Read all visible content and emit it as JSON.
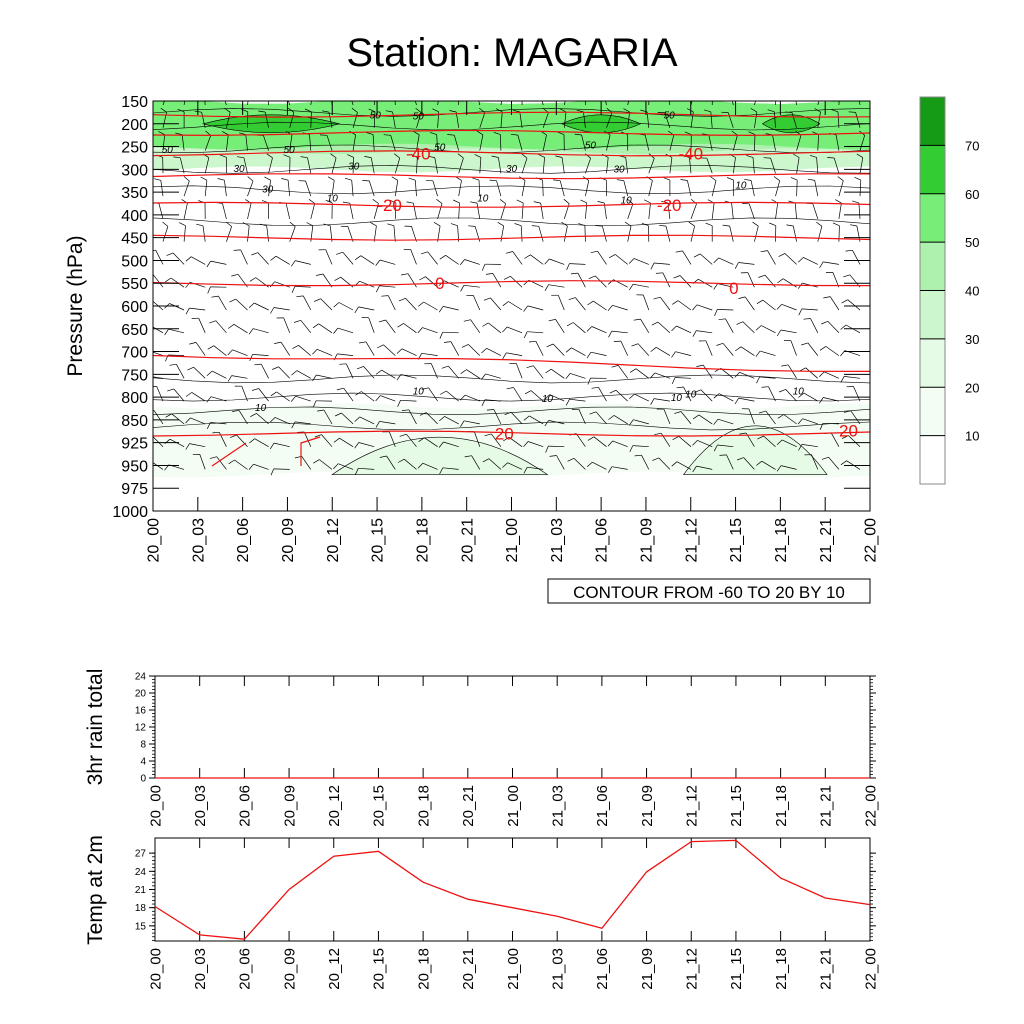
{
  "title": "Station: MAGARIA",
  "time_labels": [
    "20_00",
    "20_03",
    "20_06",
    "20_09",
    "20_12",
    "20_15",
    "20_18",
    "20_21",
    "21_00",
    "21_03",
    "21_06",
    "21_09",
    "21_12",
    "21_15",
    "21_18",
    "21_21",
    "22_00"
  ],
  "colors": {
    "temp_line": "#ee1111",
    "wind_line": "#000000",
    "shade_10_20": "#f3fdf3",
    "shade_20_30": "#e6fbe6",
    "shade_30_40": "#ccf7cc",
    "shade_40_50": "#aef0ae",
    "shade_50_60": "#77ee77",
    "shade_60_70": "#33cc33",
    "shade_70_80": "#159b15"
  },
  "chart_data": [
    {
      "type": "heatmap",
      "title": "Station: MAGARIA",
      "ylabel": "Pressure (hPa)",
      "xlabel": "",
      "info_label": "CONTOUR FROM -60 TO 20 BY 10",
      "pressure_levels": [
        "150",
        "200",
        "250",
        "300",
        "350",
        "400",
        "450",
        "500",
        "550",
        "600",
        "650",
        "700",
        "750",
        "800",
        "850",
        "925",
        "950",
        "975",
        "1000"
      ],
      "colorbar": {
        "labels": [
          "10",
          "20",
          "30",
          "40",
          "50",
          "60",
          "70"
        ],
        "bins": [
          0,
          10,
          20,
          30,
          40,
          50,
          60,
          70,
          80
        ]
      },
      "wind_speed_bands": [
        {
          "low": 10,
          "high": 20,
          "p_top": 820,
          "p_bottom": 960
        },
        {
          "low": 30,
          "high": 40,
          "p_top": 250,
          "p_bottom": 300
        },
        {
          "low": 40,
          "high": 50,
          "p_top": 170,
          "p_bottom": 260
        },
        {
          "low": 50,
          "high": 60,
          "p_top": 150,
          "p_bottom": 250
        }
      ],
      "wind_labels": [
        "50",
        "50",
        "50",
        "50",
        "50",
        "50",
        "50",
        "30",
        "30",
        "30",
        "30",
        "30",
        "10",
        "10",
        "10",
        "10",
        "10",
        "10",
        "10",
        "10",
        "10",
        "10"
      ],
      "temperature_contours": [
        {
          "value": -60,
          "pressure": 180,
          "label": ""
        },
        {
          "value": -50,
          "pressure": 220,
          "label": ""
        },
        {
          "value": -40,
          "pressure": 265,
          "label": "-40"
        },
        {
          "value": -30,
          "pressure": 315,
          "label": ""
        },
        {
          "value": -20,
          "pressure": 378,
          "label": "-20"
        },
        {
          "value": -10,
          "pressure": 450,
          "label": ""
        },
        {
          "value": 0,
          "pressure": 550,
          "label": "0"
        },
        {
          "value": 10,
          "pressure": 705,
          "label": ""
        },
        {
          "value": 20,
          "pressure": 895,
          "label": "20"
        }
      ],
      "temperature_labels": [
        "-40",
        "-40",
        "-20",
        "-20",
        "0",
        "0",
        "20",
        "20"
      ]
    },
    {
      "type": "line",
      "ylabel": "3hr rain total",
      "xlabel": "",
      "yticks": [
        "0",
        "4",
        "8",
        "12",
        "16",
        "20",
        "24"
      ],
      "ylim": [
        0,
        24
      ],
      "values": [
        0,
        0,
        0,
        0,
        0,
        0,
        0,
        0,
        0,
        0,
        0,
        0,
        0,
        0,
        0,
        0,
        0
      ]
    },
    {
      "type": "line",
      "ylabel": "Temp at 2m",
      "xlabel": "",
      "yticks": [
        "15",
        "18",
        "21",
        "24",
        "27"
      ],
      "ylim": [
        12.5,
        29.5
      ],
      "values": [
        18.2,
        13.5,
        12.8,
        21.0,
        26.5,
        27.3,
        22.2,
        19.4,
        18.0,
        16.6,
        14.6,
        23.9,
        28.9,
        29.1,
        22.9,
        19.6,
        18.5
      ]
    }
  ]
}
